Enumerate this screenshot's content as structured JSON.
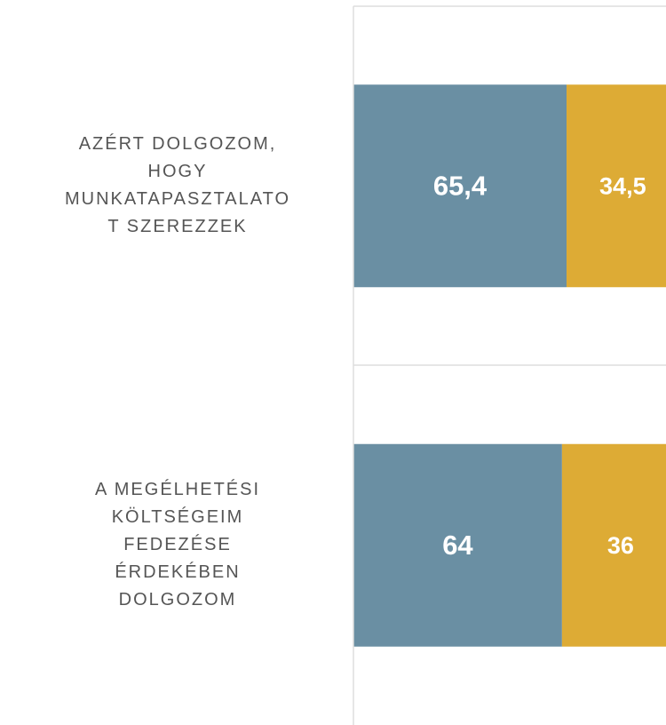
{
  "chart_data": {
    "type": "stacked-barh",
    "categories": [
      "AZÉRT DOLGOZOM, HOGY MUNKATAPASZTALATOT SZEREZZEK",
      "A MEGÉLHETÉSI KÖLTSÉGEIM FEDEZÉSE ÉRDEKÉBEN DOLGOZOM"
    ],
    "series": [
      {
        "color": "#6a8fa3",
        "values": [
          65.4,
          64
        ],
        "value_labels": [
          "65,4",
          "64"
        ]
      },
      {
        "color": "#ddab35",
        "values": [
          34.5,
          36
        ],
        "value_labels": [
          "34,5",
          "36"
        ]
      }
    ],
    "xlim": [
      0,
      100
    ]
  }
}
